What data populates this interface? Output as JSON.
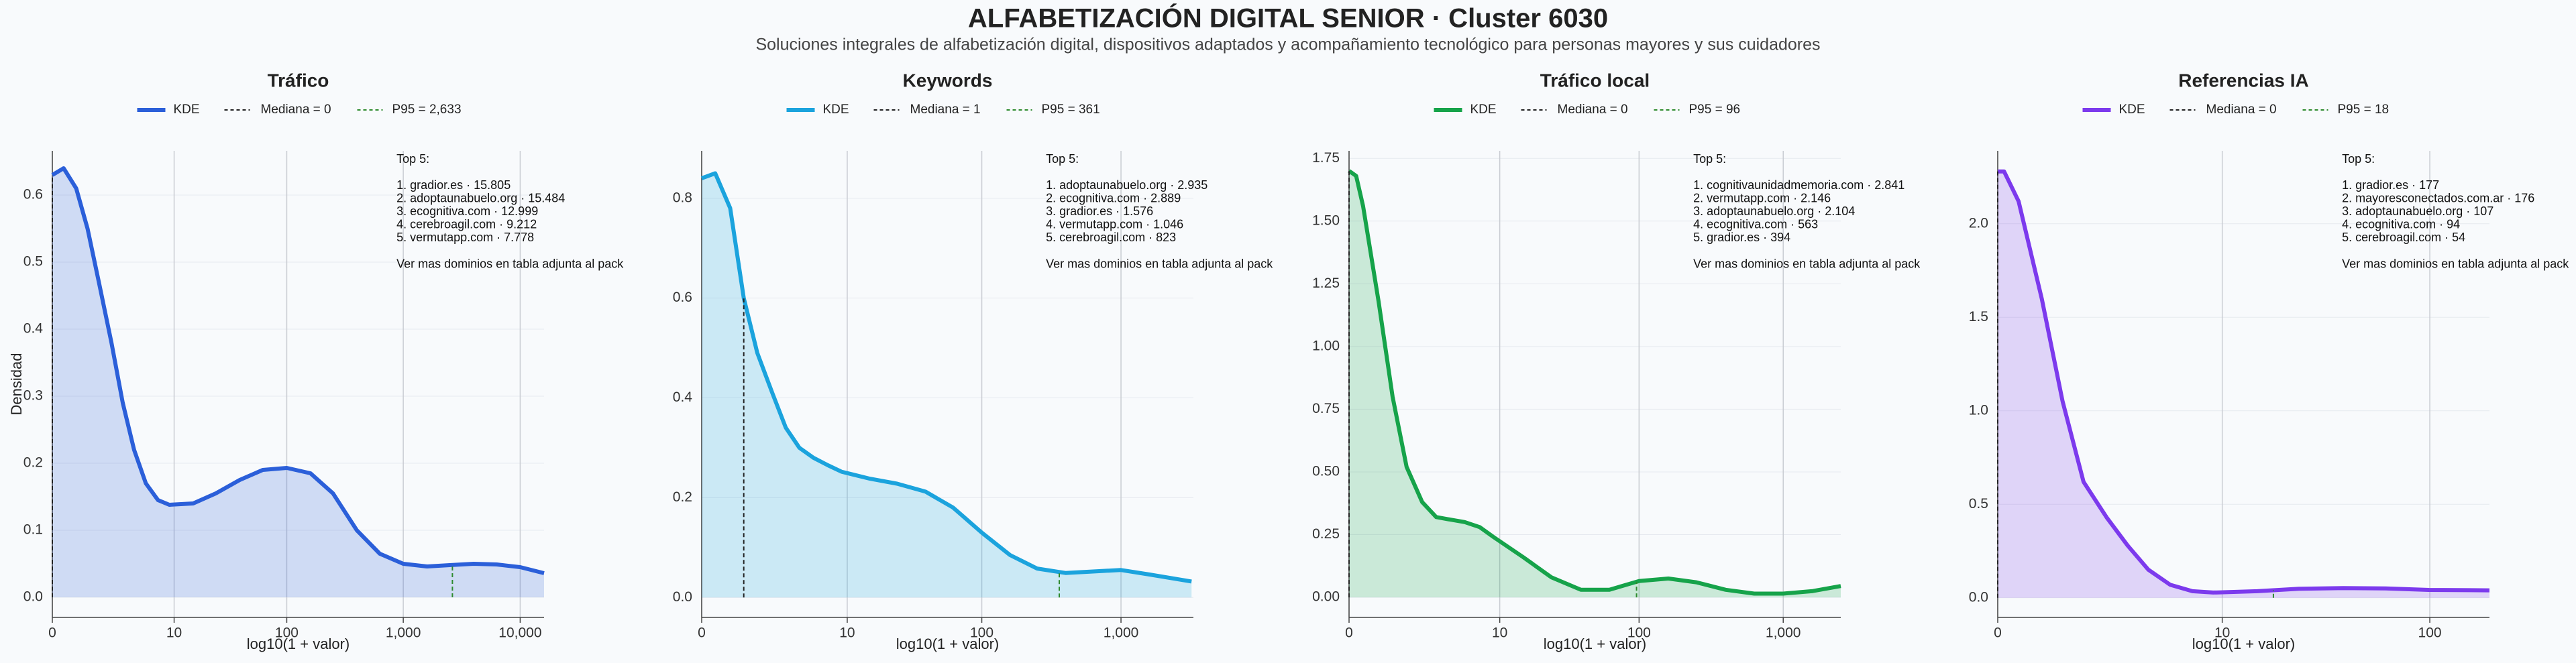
{
  "title": "ALFABETIZACIÓN DIGITAL SENIOR · Cluster 6030",
  "subtitle": "Soluciones integrales de alfabetización digital, dispositivos adaptados y acompañamiento tecnológico para personas mayores y sus cuidadores",
  "chart_data": [
    {
      "type": "line",
      "title": "Tráfico",
      "xlabel": "log10(1 + valor)",
      "ylabel": "Densidad",
      "xscale": "log1p",
      "grid": true,
      "series": [
        {
          "name": "KDE",
          "color": "#2b5fd9",
          "x": [
            0,
            0.25,
            0.6,
            1,
            1.5,
            2.2,
            3,
            4,
            5.3,
            7,
            9,
            15,
            24,
            39,
            62,
            100,
            160,
            250,
            400,
            630,
            1000,
            1600,
            2500,
            4000,
            6300,
            10000,
            16000
          ],
          "values": [
            0.63,
            0.64,
            0.61,
            0.55,
            0.47,
            0.38,
            0.29,
            0.22,
            0.17,
            0.145,
            0.138,
            0.14,
            0.155,
            0.175,
            0.19,
            0.193,
            0.185,
            0.155,
            0.1,
            0.065,
            0.05,
            0.046,
            0.048,
            0.05,
            0.049,
            0.045,
            0.036
          ]
        }
      ],
      "median": 0,
      "median_label": "Mediana = 0",
      "median_color": "#222222",
      "p95": 2633,
      "p95_label": "P95 = 2,633",
      "p95_color": "#2e8b2e",
      "xlim": [
        0,
        16000
      ],
      "xticks": [
        0,
        10,
        100,
        {
          "value": 1000,
          "label": "1,000"
        },
        {
          "value": 10000,
          "label": "10,000"
        }
      ],
      "ylim": [
        -0.03,
        0.666
      ],
      "yticks": [
        {
          "value": 0,
          "label": "0.0"
        },
        0.1,
        0.2,
        0.3,
        0.4,
        0.5,
        0.6
      ],
      "annotation": {
        "heading": "Top 5:",
        "items": [
          "1. gradior.es · 15.805",
          "2. adoptaunabuelo.org · 15.484",
          "3. ecognitiva.com · 12.999",
          "4. cerebroagil.com · 9.212",
          "5. vermutapp.com · 7.778"
        ],
        "footer": "Ver mas dominios en tabla adjunta al pack"
      }
    },
    {
      "type": "line",
      "title": "Keywords",
      "xlabel": "log10(1 + valor)",
      "xscale": "log1p",
      "grid": true,
      "series": [
        {
          "name": "KDE",
          "color": "#1ba3dd",
          "x": [
            0,
            0.25,
            0.6,
            1,
            1.5,
            2.2,
            3,
            4,
            5.3,
            7,
            9,
            15,
            24,
            39,
            62,
            100,
            160,
            250,
            400,
            630,
            1000,
            1600,
            3200
          ],
          "values": [
            0.84,
            0.85,
            0.78,
            0.6,
            0.49,
            0.41,
            0.34,
            0.3,
            0.28,
            0.265,
            0.252,
            0.238,
            0.228,
            0.212,
            0.18,
            0.13,
            0.085,
            0.058,
            0.049,
            0.052,
            0.055,
            0.046,
            0.032
          ]
        }
      ],
      "median": 1,
      "median_label": "Mediana = 1",
      "median_color": "#222222",
      "p95": 361,
      "p95_label": "P95 = 361",
      "p95_color": "#2e8b2e",
      "xlim": [
        0,
        3300
      ],
      "xticks": [
        0,
        10,
        100,
        {
          "value": 1000,
          "label": "1,000"
        }
      ],
      "ylim": [
        -0.04,
        0.895
      ],
      "yticks": [
        {
          "value": 0,
          "label": "0.0"
        },
        0.2,
        0.4,
        0.6,
        0.8
      ],
      "annotation": {
        "heading": "Top 5:",
        "items": [
          "1. adoptaunabuelo.org · 2.935",
          "2. ecognitiva.com · 2.889",
          "3. gradior.es · 1.576",
          "4. vermutapp.com · 1.046",
          "5. cerebroagil.com · 823"
        ],
        "footer": "Ver mas dominios en tabla adjunta al pack"
      }
    },
    {
      "type": "line",
      "title": "Tráfico local",
      "xlabel": "log10(1 + valor)",
      "xscale": "log1p",
      "grid": true,
      "series": [
        {
          "name": "KDE",
          "color": "#16a34a",
          "x": [
            0,
            0.12,
            0.25,
            0.6,
            1,
            1.5,
            2.2,
            3,
            4,
            5.3,
            7,
            9,
            15,
            24,
            39,
            62,
            100,
            160,
            250,
            400,
            630,
            1000,
            1600,
            2500
          ],
          "values": [
            1.7,
            1.68,
            1.56,
            1.18,
            0.8,
            0.52,
            0.38,
            0.32,
            0.31,
            0.3,
            0.28,
            0.24,
            0.16,
            0.08,
            0.03,
            0.03,
            0.065,
            0.075,
            0.06,
            0.03,
            0.015,
            0.015,
            0.025,
            0.045
          ]
        }
      ],
      "median": 0,
      "median_label": "Mediana = 0",
      "median_color": "#222222",
      "p95": 96,
      "p95_label": "P95 = 96",
      "p95_color": "#2e8b2e",
      "xlim": [
        0,
        2500
      ],
      "xticks": [
        0,
        10,
        100,
        {
          "value": 1000,
          "label": "1,000"
        }
      ],
      "ylim": [
        -0.08,
        1.78
      ],
      "yticks": [
        {
          "value": 0,
          "label": "0.00"
        },
        0.25,
        {
          "value": 0.5,
          "label": "0.50"
        },
        0.75,
        {
          "value": 1,
          "label": "1.00"
        },
        1.25,
        {
          "value": 1.5,
          "label": "1.50"
        },
        1.75
      ],
      "annotation": {
        "heading": "Top 5:",
        "items": [
          "1. cognitivaunidadmemoria.com · 2.841",
          "2. vermutapp.com · 2.146",
          "3. adoptaunabuelo.org · 2.104",
          "4. ecognitiva.com · 563",
          "5. gradior.es · 394"
        ],
        "footer": "Ver mas dominios en tabla adjunta al pack"
      }
    },
    {
      "type": "line",
      "title": "Referencias IA",
      "xlabel": "log10(1 + valor)",
      "xscale": "log1p",
      "grid": true,
      "series": [
        {
          "name": "KDE",
          "color": "#7c3aed",
          "x": [
            0,
            0.07,
            0.25,
            0.6,
            1,
            1.5,
            2.2,
            3,
            4,
            5.3,
            7,
            9,
            15,
            24,
            39,
            62,
            99,
            190
          ],
          "values": [
            2.28,
            2.28,
            2.12,
            1.6,
            1.05,
            0.62,
            0.43,
            0.28,
            0.15,
            0.07,
            0.035,
            0.028,
            0.035,
            0.048,
            0.052,
            0.05,
            0.042,
            0.04
          ]
        }
      ],
      "median": 0,
      "median_label": "Mediana = 0",
      "median_color": "#222222",
      "p95": 18,
      "p95_label": "P95 = 18",
      "p95_color": "#2e8b2e",
      "xlim": [
        0,
        190
      ],
      "xticks": [
        0,
        10,
        100
      ],
      "ylim": [
        -0.105,
        2.39
      ],
      "yticks": [
        {
          "value": 0,
          "label": "0.0"
        },
        0.5,
        {
          "value": 1,
          "label": "1.0"
        },
        1.5,
        {
          "value": 2,
          "label": "2.0"
        }
      ],
      "annotation": {
        "heading": "Top 5:",
        "items": [
          "1. gradior.es · 177",
          "2. mayoresconectados.com.ar · 176",
          "3. adoptaunabuelo.org · 107",
          "4. ecognitiva.com · 94",
          "5. cerebroagil.com · 54"
        ],
        "footer": "Ver mas dominios en tabla adjunta al pack"
      }
    }
  ]
}
